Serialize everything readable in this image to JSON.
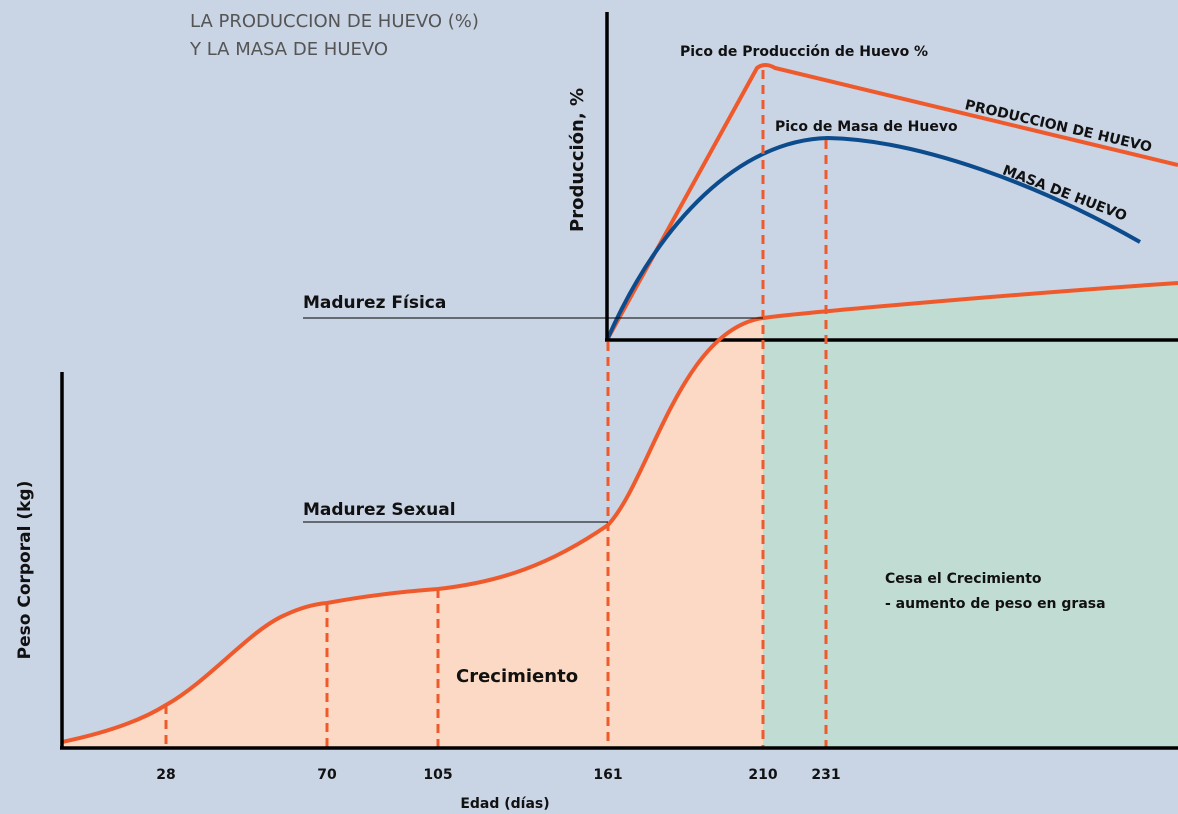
{
  "title": [
    "LA PRODUCCION DE HUEVO (%)",
    "Y LA MASA DE HUEVO"
  ],
  "production_chart": {
    "y_axis_label": "Producción, %",
    "peak_production_label": "Pico de Producción de Huevo %",
    "peak_mass_label": "Pico de Masa de Huevo",
    "production_line_label": "PRODUCCION DE HUEVO",
    "mass_line_label": "MASA DE HUEVO"
  },
  "growth_chart": {
    "y_axis_label": "Peso Corporal (kg)",
    "x_axis_label": "Edad (días)",
    "x_ticks": [
      28,
      70,
      105,
      161,
      210,
      231
    ],
    "physical_maturity_label": "Madurez Física",
    "sexual_maturity_label": "Madurez Sexual",
    "growth_label": "Crecimiento",
    "growth_stops_label": [
      "Cesa el Crecimiento",
      "- aumento de peso en grasa"
    ]
  }
}
